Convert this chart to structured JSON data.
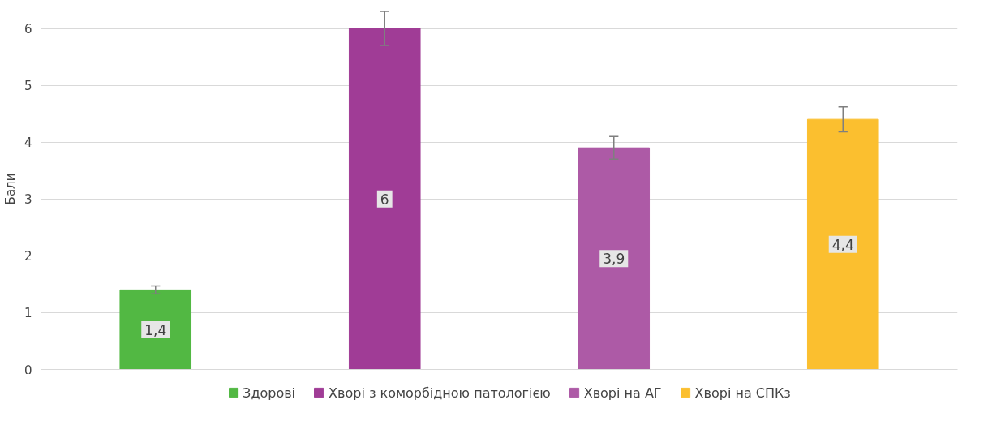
{
  "chart_data": {
    "type": "bar",
    "ylabel": "Бали",
    "categories": [
      null,
      null,
      null,
      null
    ],
    "series": [
      {
        "name": "Здорові",
        "color": "#52b843",
        "values": [
          1.4,
          null,
          null,
          null
        ],
        "errors": [
          0.07,
          null,
          null,
          null
        ],
        "value_labels": [
          "1,4",
          null,
          null,
          null
        ]
      },
      {
        "name": "Хворі з коморбідною патологією",
        "color": "#a03c96",
        "values": [
          null,
          6,
          null,
          null
        ],
        "errors": [
          null,
          0.3,
          null,
          null
        ],
        "value_labels": [
          null,
          "6",
          null,
          null
        ]
      },
      {
        "name": "Хворі на АГ",
        "color": "#ad5aa6",
        "values": [
          null,
          null,
          3.9,
          null
        ],
        "errors": [
          null,
          null,
          0.2,
          null
        ],
        "value_labels": [
          null,
          null,
          "3,9",
          null
        ]
      },
      {
        "name": "Хворі на СПКз",
        "color": "#fbbf2f",
        "values": [
          null,
          null,
          null,
          4.4
        ],
        "errors": [
          null,
          null,
          null,
          0.22
        ],
        "value_labels": [
          null,
          null,
          null,
          "4,4"
        ]
      }
    ],
    "ylim": [
      0,
      6.35
    ],
    "yticks": [
      0,
      1,
      2,
      3,
      4,
      5,
      6
    ],
    "grid": "y",
    "legend": "bottom",
    "tick_labels": "y"
  }
}
